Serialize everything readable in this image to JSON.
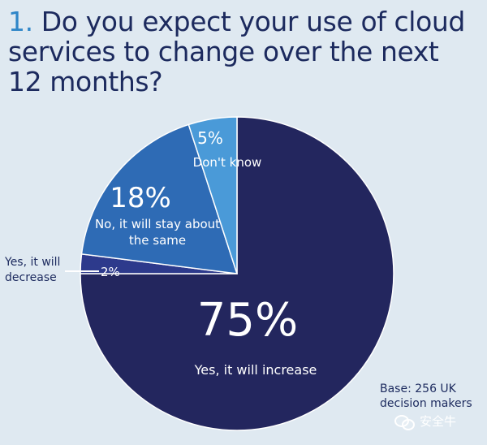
{
  "title": {
    "number": "1.",
    "text": "Do you expect your use of cloud services to change over the next 12 months?"
  },
  "chart_data": {
    "type": "pie",
    "slices": [
      {
        "label": "Yes, it will increase",
        "value": 75,
        "display": "75%",
        "color": "#23265e"
      },
      {
        "label": "Yes, it will decrease",
        "value": 2,
        "display": "2%",
        "color": "#2d3a8c"
      },
      {
        "label": "No, it will stay about the same",
        "value": 18,
        "display": "18%",
        "color": "#2e6bb5"
      },
      {
        "label": "Don't know",
        "value": 5,
        "display": "5%",
        "color": "#4a9ad8"
      }
    ]
  },
  "labels": {
    "increase_pct": "75%",
    "increase_text": "Yes, it will increase",
    "same_pct": "18%",
    "same_text": "No, it will stay about the same",
    "dontknow_pct": "5%",
    "dontknow_text": "Don't know",
    "decrease_pct": "2%",
    "decrease_text": "Yes, it will decrease"
  },
  "base_note": "Base: 256 UK decision makers",
  "watermark": "安全牛"
}
